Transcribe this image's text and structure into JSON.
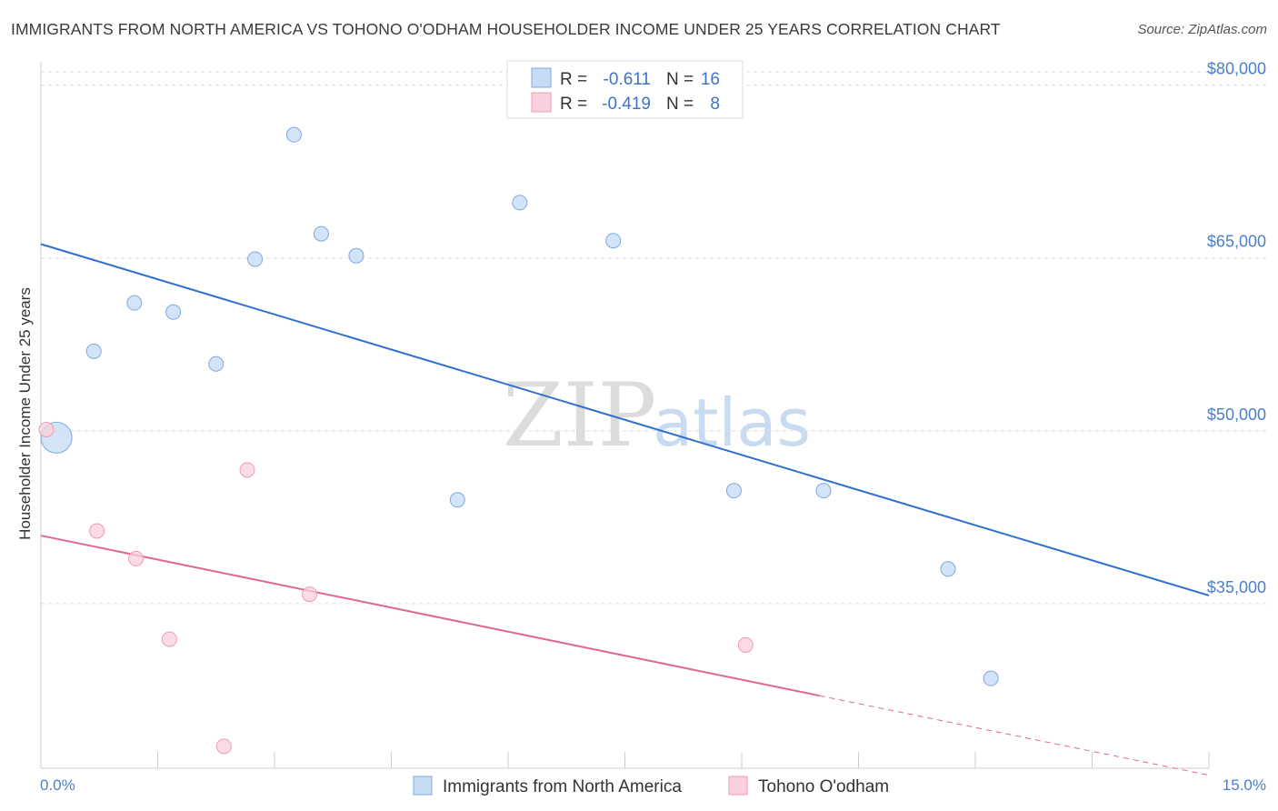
{
  "header": {
    "title": "IMMIGRANTS FROM NORTH AMERICA VS TOHONO O'ODHAM HOUSEHOLDER INCOME UNDER 25 YEARS CORRELATION CHART",
    "source": "Source: ZipAtlas.com"
  },
  "watermark": {
    "zip": "ZIP",
    "atlas": "atlas"
  },
  "legend": {
    "rows": [
      {
        "r_label": "R =",
        "r_value": "-0.611",
        "n_label": "N =",
        "n_value": "16",
        "color": "#a9c8f0"
      },
      {
        "r_label": "R =",
        "r_value": "-0.419",
        "n_label": "N =",
        "n_value": "8",
        "color": "#f6b8c9"
      }
    ]
  },
  "colors": {
    "blue_fill": "#c6dbf5",
    "blue_stroke": "#7fa9de",
    "blue_line": "#2f6fd0",
    "pink_fill": "#fad0dc",
    "pink_stroke": "#ee9bb3",
    "pink_line": "#e2678f",
    "tick_text": "#4a7fcc",
    "grid": "#dddddd"
  },
  "chart_data": {
    "type": "scatter",
    "title": "IMMIGRANTS FROM NORTH AMERICA VS TOHONO O'ODHAM HOUSEHOLDER INCOME UNDER 25 YEARS CORRELATION CHART",
    "xlabel": "",
    "ylabel": "Householder Income Under 25 years",
    "xlim": [
      0,
      15
    ],
    "ylim": [
      20700,
      82500
    ],
    "x_tick_labels": [
      "0.0%",
      "15.0%"
    ],
    "y_ticks": [
      {
        "value": 35000,
        "label": "$35,000"
      },
      {
        "value": 50000,
        "label": "$50,000"
      },
      {
        "value": 65000,
        "label": "$65,000"
      },
      {
        "value": 80000,
        "label": "$80,000"
      }
    ],
    "series": [
      {
        "name": "Immigrants from North America",
        "r": -0.611,
        "n": 16,
        "points": [
          {
            "x": 0.2,
            "y": 49400,
            "size": "large"
          },
          {
            "x": 0.68,
            "y": 56900
          },
          {
            "x": 1.2,
            "y": 61100
          },
          {
            "x": 1.7,
            "y": 60300
          },
          {
            "x": 2.25,
            "y": 55800
          },
          {
            "x": 2.75,
            "y": 64900
          },
          {
            "x": 3.25,
            "y": 75700
          },
          {
            "x": 3.6,
            "y": 67100
          },
          {
            "x": 4.05,
            "y": 65200
          },
          {
            "x": 5.35,
            "y": 44000
          },
          {
            "x": 6.15,
            "y": 69800
          },
          {
            "x": 7.35,
            "y": 66500
          },
          {
            "x": 8.9,
            "y": 44800
          },
          {
            "x": 10.05,
            "y": 44800
          },
          {
            "x": 11.65,
            "y": 38000
          },
          {
            "x": 12.2,
            "y": 28500
          }
        ],
        "trend": {
          "x0": 0,
          "y0": 66200,
          "x1": 15,
          "y1": 35700
        }
      },
      {
        "name": "Tohono O'odham",
        "r": -0.419,
        "n": 8,
        "points": [
          {
            "x": 0.07,
            "y": 50100
          },
          {
            "x": 0.72,
            "y": 41300
          },
          {
            "x": 1.22,
            "y": 38900
          },
          {
            "x": 1.65,
            "y": 31900
          },
          {
            "x": 2.35,
            "y": 22600
          },
          {
            "x": 2.65,
            "y": 46600
          },
          {
            "x": 3.45,
            "y": 35800
          },
          {
            "x": 9.05,
            "y": 31400
          }
        ],
        "trend": {
          "x0": 0,
          "y0": 40900,
          "x1": 10.0,
          "y1": 27000,
          "dash_to_x": 15,
          "dash_to_y": 20100
        }
      }
    ]
  }
}
